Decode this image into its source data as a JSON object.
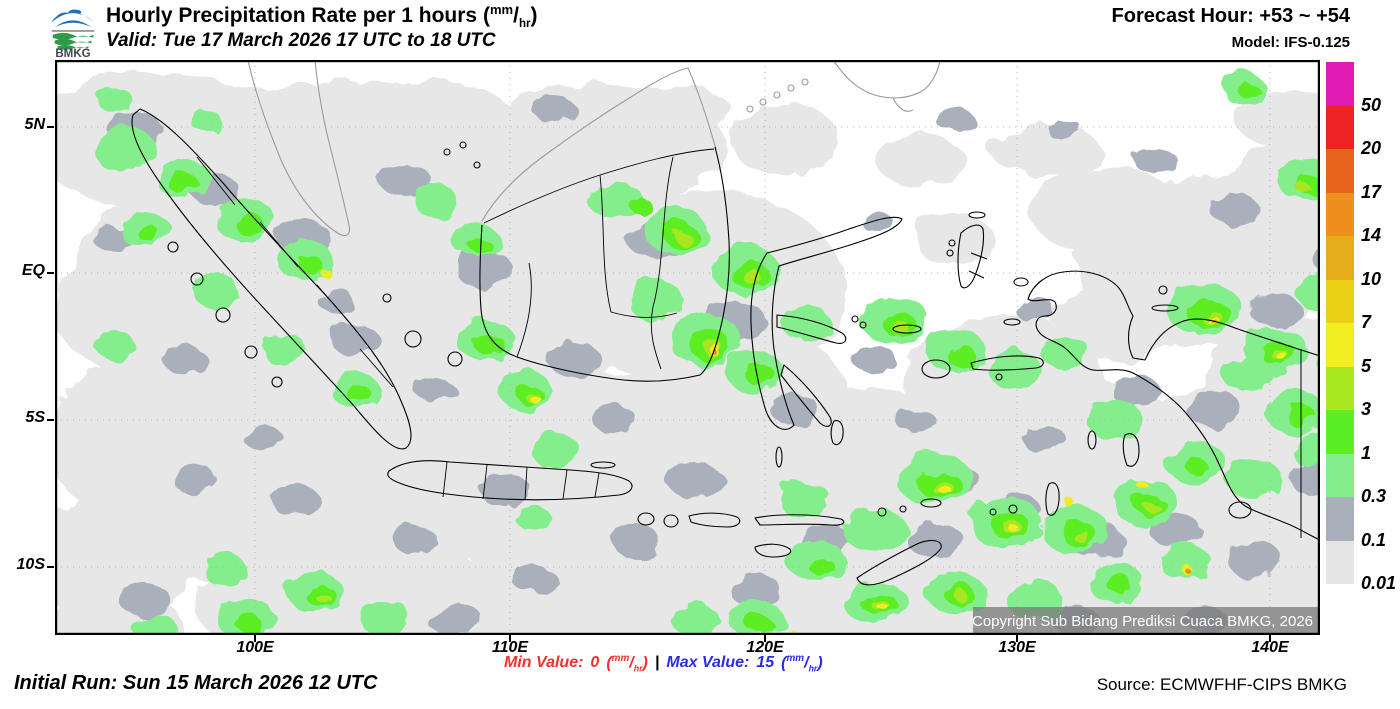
{
  "header": {
    "logo_text": "BMKG",
    "title": "Hourly Precipitation Rate per 1 hours",
    "unit_num": "mm",
    "unit_den": "hr",
    "valid": "Valid: Tue 17 March 2026 17 UTC to 18 UTC",
    "forecast_hour": "Forecast Hour: +53 ~ +54",
    "model": "Model: IFS-0.125"
  },
  "footer": {
    "initial_run": "Initial Run: Sun 15 March 2026 12 UTC",
    "min_label": "Min Value:",
    "min_value": "0",
    "separator": "|",
    "max_label": "Max Value:",
    "max_value": "15",
    "unit_num": "mm",
    "unit_den": "hr",
    "source": "Source: ECMWFHF-CIPS BMKG"
  },
  "legend": {
    "labels": [
      "50",
      "20",
      "17",
      "14",
      "10",
      "7",
      "5",
      "3",
      "1",
      "0.3",
      "0.1",
      "0.01"
    ],
    "colors": [
      "#DE1CB4",
      "#EE2222",
      "#E8641C",
      "#EE8E1C",
      "#E6AC1C",
      "#EAD014",
      "#F0EE20",
      "#A8E620",
      "#5BEE23",
      "#85EE8C",
      "#A9AFBB",
      "#E5E5E5"
    ]
  },
  "map": {
    "copyright": "Copyright Sub Bidang Prediksi Cuaca BMKG, 2026",
    "x_ticks": [
      {
        "label": "100E",
        "px": 200
      },
      {
        "label": "110E",
        "px": 455
      },
      {
        "label": "120E",
        "px": 710
      },
      {
        "label": "130E",
        "px": 962
      },
      {
        "label": "140E",
        "px": 1215
      }
    ],
    "y_ticks": [
      {
        "label": "5N",
        "px": 67
      },
      {
        "label": "EQ",
        "px": 213
      },
      {
        "label": "5S",
        "px": 360
      },
      {
        "label": "10S",
        "px": 507
      }
    ],
    "palette": {
      "lg": "#E7E7E7",
      "g": "#A9AFBB",
      "pg": "#85EE8C",
      "bg": "#5BEE23",
      "yg": "#A8E620",
      "y": "#F0EE20",
      "o": "#EE8E1C"
    },
    "blobs": {
      "lg": [
        [
          100,
          80,
          120,
          70
        ],
        [
          300,
          95,
          150,
          75
        ],
        [
          540,
          85,
          130,
          60
        ],
        [
          180,
          215,
          160,
          100
        ],
        [
          420,
          250,
          160,
          105
        ],
        [
          650,
          230,
          140,
          100
        ],
        [
          120,
          380,
          130,
          90
        ],
        [
          320,
          420,
          150,
          100
        ],
        [
          560,
          420,
          150,
          105
        ],
        [
          780,
          430,
          160,
          105
        ],
        [
          1000,
          430,
          170,
          115
        ],
        [
          1180,
          430,
          140,
          105
        ],
        [
          1150,
          200,
          130,
          85
        ],
        [
          1255,
          150,
          90,
          75
        ],
        [
          1050,
          150,
          75,
          45
        ],
        [
          950,
          320,
          100,
          65
        ],
        [
          850,
          545,
          150,
          65
        ],
        [
          300,
          545,
          160,
          65
        ],
        [
          600,
          545,
          140,
          65
        ],
        [
          1100,
          545,
          130,
          65
        ],
        [
          60,
          500,
          80,
          65
        ],
        [
          1230,
          320,
          80,
          65
        ],
        [
          730,
          80,
          55,
          35
        ],
        [
          865,
          100,
          45,
          25
        ],
        [
          990,
          90,
          55,
          25
        ],
        [
          1240,
          60,
          60,
          28
        ],
        [
          450,
          160,
          100,
          60
        ],
        [
          700,
          330,
          90,
          60
        ],
        [
          480,
          350,
          90,
          60
        ],
        [
          250,
          320,
          90,
          60
        ],
        [
          70,
          250,
          70,
          60
        ],
        [
          380,
          60,
          80,
          38
        ],
        [
          200,
          55,
          70,
          28
        ],
        [
          620,
          48,
          55,
          22
        ],
        [
          520,
          470,
          120,
          60
        ],
        [
          150,
          470,
          100,
          50
        ],
        [
          950,
          505,
          90,
          50
        ],
        [
          1265,
          485,
          65,
          55
        ],
        [
          1060,
          265,
          65,
          38
        ],
        [
          900,
          180,
          40,
          25
        ],
        [
          60,
          570,
          70,
          40
        ],
        [
          440,
          560,
          90,
          45
        ],
        [
          720,
          560,
          90,
          45
        ],
        [
          1200,
          565,
          80,
          40
        ]
      ],
      "g": [
        [
          80,
          70,
          28,
          18
        ],
        [
          160,
          130,
          24,
          16
        ],
        [
          250,
          180,
          28,
          18
        ],
        [
          350,
          120,
          26,
          16
        ],
        [
          430,
          210,
          28,
          20
        ],
        [
          300,
          280,
          24,
          16
        ],
        [
          520,
          300,
          26,
          18
        ],
        [
          600,
          180,
          28,
          18
        ],
        [
          680,
          260,
          30,
          20
        ],
        [
          740,
          350,
          24,
          16
        ],
        [
          820,
          300,
          22,
          14
        ],
        [
          640,
          420,
          28,
          18
        ],
        [
          580,
          480,
          24,
          16
        ],
        [
          450,
          430,
          26,
          16
        ],
        [
          360,
          480,
          22,
          14
        ],
        [
          240,
          440,
          24,
          16
        ],
        [
          140,
          420,
          22,
          14
        ],
        [
          90,
          540,
          26,
          16
        ],
        [
          400,
          560,
          28,
          16
        ],
        [
          700,
          530,
          26,
          16
        ],
        [
          770,
          480,
          24,
          16
        ],
        [
          880,
          480,
          28,
          18
        ],
        [
          960,
          450,
          26,
          16
        ],
        [
          1040,
          480,
          28,
          18
        ],
        [
          1120,
          470,
          26,
          16
        ],
        [
          1200,
          500,
          28,
          18
        ],
        [
          1260,
          420,
          24,
          16
        ],
        [
          1160,
          350,
          28,
          18
        ],
        [
          1080,
          330,
          24,
          16
        ],
        [
          1220,
          250,
          26,
          16
        ],
        [
          1280,
          200,
          22,
          14
        ],
        [
          1180,
          150,
          24,
          16
        ],
        [
          1100,
          100,
          22,
          12
        ],
        [
          900,
          60,
          20,
          10
        ],
        [
          1010,
          70,
          18,
          10
        ],
        [
          820,
          160,
          16,
          10
        ],
        [
          900,
          420,
          24,
          16
        ],
        [
          990,
          380,
          22,
          14
        ],
        [
          500,
          50,
          22,
          12
        ],
        [
          60,
          180,
          20,
          14
        ],
        [
          130,
          300,
          22,
          14
        ],
        [
          210,
          380,
          20,
          12
        ],
        [
          480,
          520,
          22,
          14
        ],
        [
          1020,
          560,
          24,
          14
        ],
        [
          1150,
          560,
          22,
          12
        ],
        [
          860,
          360,
          20,
          12
        ],
        [
          560,
          360,
          22,
          14
        ],
        [
          380,
          330,
          20,
          12
        ],
        [
          280,
          240,
          18,
          12
        ],
        [
          980,
          250,
          20,
          12
        ]
      ],
      "pg": [
        [
          70,
          90,
          32,
          22
        ],
        [
          130,
          120,
          28,
          20
        ],
        [
          190,
          160,
          30,
          22
        ],
        [
          90,
          170,
          26,
          18
        ],
        [
          250,
          200,
          28,
          20
        ],
        [
          160,
          230,
          24,
          16
        ],
        [
          60,
          285,
          20,
          14
        ],
        [
          230,
          290,
          22,
          16
        ],
        [
          300,
          330,
          24,
          18
        ],
        [
          430,
          280,
          28,
          22
        ],
        [
          470,
          330,
          26,
          20
        ],
        [
          500,
          390,
          24,
          18
        ],
        [
          420,
          180,
          24,
          16
        ],
        [
          380,
          140,
          22,
          16
        ],
        [
          560,
          140,
          28,
          18
        ],
        [
          620,
          170,
          32,
          22
        ],
        [
          690,
          210,
          34,
          24
        ],
        [
          650,
          280,
          36,
          26
        ],
        [
          700,
          312,
          28,
          22
        ],
        [
          600,
          240,
          28,
          20
        ],
        [
          750,
          262,
          24,
          18
        ],
        [
          840,
          260,
          34,
          24
        ],
        [
          900,
          290,
          30,
          22
        ],
        [
          960,
          310,
          26,
          20
        ],
        [
          1010,
          292,
          24,
          18
        ],
        [
          1150,
          250,
          38,
          26
        ],
        [
          1220,
          292,
          34,
          24
        ],
        [
          1270,
          232,
          28,
          22
        ],
        [
          1240,
          352,
          30,
          22
        ],
        [
          1192,
          312,
          26,
          20
        ],
        [
          1285,
          300,
          26,
          18
        ],
        [
          1250,
          120,
          28,
          20
        ],
        [
          1302,
          172,
          24,
          18
        ],
        [
          880,
          420,
          38,
          26
        ],
        [
          950,
          462,
          36,
          26
        ],
        [
          1020,
          470,
          34,
          24
        ],
        [
          1090,
          442,
          32,
          24
        ],
        [
          1140,
          402,
          30,
          22
        ],
        [
          820,
          470,
          32,
          22
        ],
        [
          760,
          500,
          30,
          20
        ],
        [
          820,
          542,
          32,
          22
        ],
        [
          900,
          532,
          30,
          20
        ],
        [
          980,
          540,
          28,
          20
        ],
        [
          1060,
          522,
          28,
          20
        ],
        [
          1130,
          502,
          26,
          18
        ],
        [
          750,
          440,
          26,
          18
        ],
        [
          1060,
          360,
          28,
          20
        ],
        [
          1200,
          420,
          28,
          20
        ],
        [
          1260,
          390,
          24,
          18
        ],
        [
          190,
          558,
          30,
          20
        ],
        [
          260,
          532,
          28,
          20
        ],
        [
          330,
          558,
          26,
          18
        ],
        [
          700,
          558,
          28,
          18
        ],
        [
          640,
          560,
          24,
          16
        ],
        [
          170,
          510,
          22,
          16
        ],
        [
          100,
          568,
          22,
          14
        ],
        [
          480,
          460,
          18,
          12
        ],
        [
          1190,
          30,
          22,
          15
        ],
        [
          60,
          40,
          18,
          12
        ],
        [
          150,
          60,
          16,
          10
        ]
      ],
      "bg": [
        [
          130,
          125,
          15,
          11
        ],
        [
          195,
          165,
          15,
          11
        ],
        [
          255,
          205,
          13,
          9
        ],
        [
          95,
          175,
          11,
          8
        ],
        [
          435,
          285,
          15,
          11
        ],
        [
          475,
          335,
          13,
          9
        ],
        [
          625,
          175,
          17,
          12
        ],
        [
          695,
          215,
          19,
          13
        ],
        [
          655,
          285,
          21,
          15
        ],
        [
          705,
          315,
          15,
          11
        ],
        [
          845,
          265,
          17,
          12
        ],
        [
          905,
          295,
          15,
          11
        ],
        [
          1155,
          255,
          21,
          15
        ],
        [
          1225,
          295,
          17,
          13
        ],
        [
          1245,
          355,
          15,
          11
        ],
        [
          885,
          425,
          21,
          15
        ],
        [
          955,
          465,
          19,
          14
        ],
        [
          1025,
          475,
          17,
          13
        ],
        [
          1095,
          445,
          15,
          11
        ],
        [
          825,
          545,
          17,
          12
        ],
        [
          905,
          535,
          15,
          11
        ],
        [
          765,
          505,
          13,
          9
        ],
        [
          265,
          535,
          15,
          11
        ],
        [
          195,
          565,
          13,
          9
        ],
        [
          705,
          565,
          13,
          9
        ],
        [
          1065,
          525,
          13,
          9
        ],
        [
          1255,
          125,
          13,
          9
        ],
        [
          585,
          145,
          11,
          8
        ],
        [
          425,
          185,
          11,
          8
        ],
        [
          1195,
          32,
          11,
          7
        ],
        [
          1140,
          405,
          11,
          8
        ],
        [
          302,
          332,
          12,
          9
        ]
      ],
      "yg": [
        [
          628,
          178,
          8,
          6
        ],
        [
          698,
          218,
          9,
          7
        ],
        [
          658,
          288,
          10,
          8
        ],
        [
          845,
          267,
          8,
          6
        ],
        [
          1157,
          258,
          10,
          8
        ],
        [
          888,
          428,
          10,
          8
        ],
        [
          957,
          467,
          9,
          7
        ],
        [
          1027,
          477,
          8,
          6
        ],
        [
          827,
          547,
          8,
          6
        ],
        [
          267,
          537,
          7,
          5
        ],
        [
          477,
          337,
          7,
          5
        ],
        [
          1227,
          297,
          8,
          6
        ],
        [
          1247,
          127,
          7,
          5
        ],
        [
          907,
          537,
          7,
          5
        ],
        [
          1097,
          447,
          7,
          5
        ]
      ],
      "y": [
        [
          270,
          212,
          5,
          4
        ],
        [
          480,
          339,
          5,
          4
        ],
        [
          660,
          290,
          6,
          5
        ],
        [
          1158,
          260,
          6,
          4
        ],
        [
          890,
          430,
          6,
          5
        ],
        [
          958,
          468,
          5,
          4
        ],
        [
          829,
          548,
          5,
          4
        ],
        [
          1229,
          298,
          5,
          4
        ],
        [
          1015,
          443,
          5,
          4
        ],
        [
          1085,
          423,
          5,
          4
        ],
        [
          1135,
          513,
          5,
          4
        ],
        [
          735,
          573,
          5,
          4
        ]
      ],
      "o": [
        [
          660,
          292,
          3,
          2
        ],
        [
          1159,
          261,
          3,
          2
        ],
        [
          1136,
          514,
          3,
          2
        ]
      ]
    }
  }
}
